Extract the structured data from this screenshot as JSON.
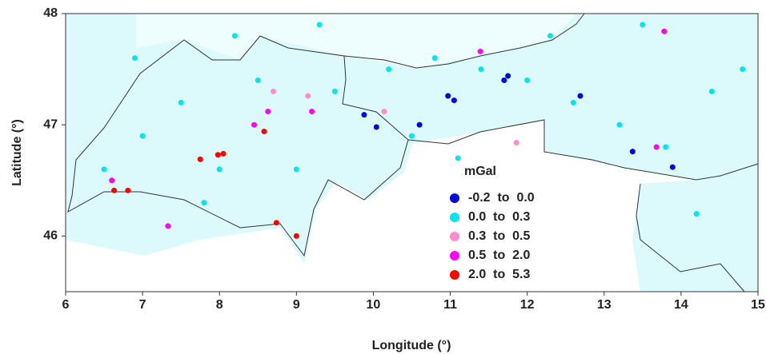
{
  "chart_data": {
    "type": "scatter",
    "xlabel": "Longitude (°)",
    "ylabel": "Latitude (°)",
    "xlim": [
      6,
      15
    ],
    "ylim": [
      45.5,
      48
    ],
    "xticks": [
      6,
      7,
      8,
      9,
      10,
      11,
      12,
      13,
      14,
      15
    ],
    "yticks": [
      46,
      47,
      48
    ],
    "legend_title": "mGal",
    "series": [
      {
        "name": "-0.2  to  0.0",
        "color": "#0000e0",
        "x": [
          9.88,
          10.04,
          10.97,
          11.05,
          11.75,
          11.7,
          12.69,
          13.37,
          13.89,
          10.6
        ],
        "y": [
          47.09,
          46.98,
          47.26,
          47.22,
          47.44,
          47.4,
          47.26,
          46.76,
          46.62,
          47.0
        ]
      },
      {
        "name": "0.0  to  0.3",
        "color": "#00e5ee",
        "x": [
          6.5,
          7.0,
          7.5,
          8.0,
          8.5,
          9.0,
          9.5,
          10.2,
          10.8,
          11.4,
          12.0,
          12.6,
          13.2,
          13.8,
          14.4,
          14.8,
          6.9,
          8.2,
          9.3,
          12.3,
          13.5,
          14.2,
          7.8,
          10.5,
          11.1
        ],
        "y": [
          46.6,
          46.9,
          47.2,
          46.6,
          47.4,
          46.6,
          47.3,
          47.5,
          47.6,
          47.5,
          47.4,
          47.2,
          47.0,
          46.8,
          47.3,
          47.5,
          47.6,
          47.8,
          47.9,
          47.8,
          47.9,
          46.2,
          46.3,
          46.9,
          46.7
        ]
      },
      {
        "name": "0.3  to  0.5",
        "color": "#ff8ccc",
        "x": [
          9.15,
          11.86,
          10.14,
          8.7
        ],
        "y": [
          47.26,
          46.84,
          47.12,
          47.3
        ]
      },
      {
        "name": "0.5  to  2.0",
        "color": "#ff00ff",
        "x": [
          8.63,
          9.2,
          11.39,
          13.68,
          13.78,
          6.6,
          7.33,
          8.45
        ],
        "y": [
          47.12,
          47.12,
          47.66,
          46.8,
          47.84,
          46.5,
          46.09,
          47.0
        ]
      },
      {
        "name": "2.0  to  5.3",
        "color": "#ff0000",
        "x": [
          6.63,
          6.81,
          7.75,
          7.98,
          8.58,
          8.74,
          9.0,
          8.05
        ],
        "y": [
          46.41,
          46.41,
          46.69,
          46.73,
          46.94,
          46.12,
          46.0,
          46.74
        ]
      }
    ]
  }
}
